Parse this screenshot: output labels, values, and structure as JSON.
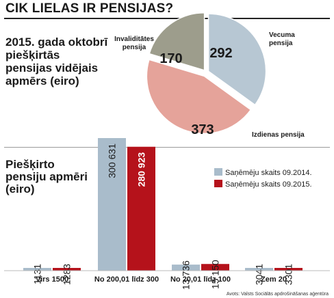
{
  "header": {
    "title": "CIK LIELAS IR PENSIJAS?"
  },
  "pie_section": {
    "heading": "2015. gada oktobrī piešķirtās pensijas vidējais apmērs (eiro)"
  },
  "bar_section": {
    "heading": "Piešķirto pensiju apmēri (eiro)"
  },
  "source": "Avots: Valsts Sociālās apdrošināšanas aģentūra",
  "colors": {
    "series_2014": "#a9bccb",
    "series_2015": "#b5121b",
    "vecuma": "#b7c7d3",
    "izdienas": "#e5a39a",
    "invaliditates": "#9d9d8c"
  },
  "chart_data": [
    {
      "type": "pie",
      "slices": [
        {
          "label": "Vecuma pensija",
          "value": 292,
          "color": "#b7c7d3"
        },
        {
          "label": "Izdienas pensija",
          "value": 373,
          "color": "#e5a39a"
        },
        {
          "label": "Invaliditātes pensija",
          "value": 170,
          "color": "#9d9d8c"
        }
      ]
    },
    {
      "type": "bar",
      "categories": [
        "Virs 1500",
        "No 200,01 līdz 300",
        "No 20,01 līdz 100",
        "Zem 20"
      ],
      "series": [
        {
          "name": "Saņēmēju skaits 09.2014.",
          "values": [
            1131,
            300631,
            13736,
            3041
          ],
          "labels": [
            "1131",
            "300 631",
            "13 736",
            "3041"
          ],
          "color": "#a9bccb"
        },
        {
          "name": "Saņēmēju skaits 09.2015.",
          "values": [
            1283,
            280923,
            15150,
            3301
          ],
          "labels": [
            "1283",
            "280 923",
            "15 150",
            "3301"
          ],
          "color": "#b5121b"
        }
      ],
      "legend_position": "right"
    }
  ]
}
